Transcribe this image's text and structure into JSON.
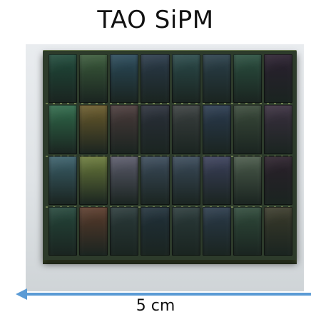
{
  "title": "TAO SiPM",
  "scale_label": "5 cm",
  "colors": {
    "arrow": "#5b9bd5",
    "board": "#2d3b2b"
  },
  "photo": {
    "subject": "sipm-tile-array",
    "rows": 4,
    "columns": 8
  }
}
